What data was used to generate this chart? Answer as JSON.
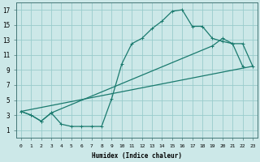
{
  "xlabel": "Humidex (Indice chaleur)",
  "bg_color": "#cce8e8",
  "grid_color": "#99cccc",
  "line_color": "#1a7a6e",
  "xlim": [
    -0.5,
    23.5
  ],
  "ylim": [
    0,
    18
  ],
  "xticks": [
    0,
    1,
    2,
    3,
    4,
    5,
    6,
    7,
    8,
    9,
    10,
    11,
    12,
    13,
    14,
    15,
    16,
    17,
    18,
    19,
    20,
    21,
    22,
    23
  ],
  "yticks": [
    1,
    3,
    5,
    7,
    9,
    11,
    13,
    15,
    17
  ],
  "line1_x": [
    0,
    1,
    2,
    3,
    4,
    5,
    6,
    7,
    8,
    9,
    10,
    11,
    12,
    13,
    14,
    15,
    16,
    17,
    18,
    19,
    20,
    21,
    22
  ],
  "line1_y": [
    3.5,
    3.0,
    2.2,
    3.3,
    1.8,
    1.5,
    1.5,
    1.5,
    1.5,
    5.2,
    9.8,
    12.5,
    13.2,
    14.5,
    15.5,
    16.8,
    17.0,
    14.8,
    14.8,
    13.2,
    12.8,
    12.5,
    9.5
  ],
  "line2_x": [
    0,
    1,
    2,
    3,
    19,
    20,
    21,
    22,
    23
  ],
  "line2_y": [
    3.5,
    3.0,
    2.2,
    3.3,
    12.2,
    13.2,
    12.5,
    12.5,
    9.5
  ],
  "line3_x": [
    0,
    23
  ],
  "line3_y": [
    3.5,
    9.5
  ]
}
